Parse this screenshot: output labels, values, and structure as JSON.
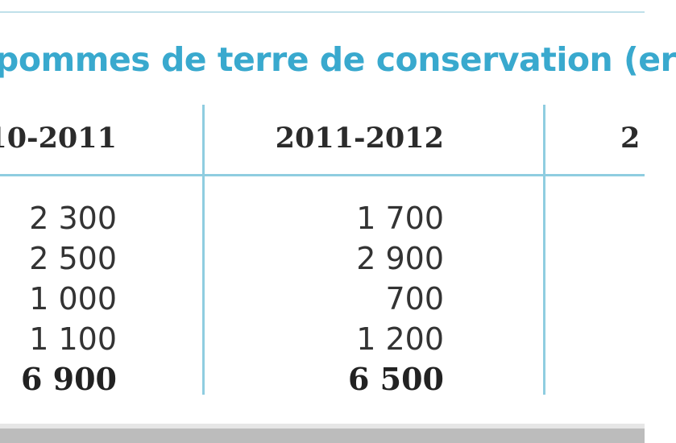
{
  "table": {
    "title": "pommes de terre de conservation (er",
    "columns": [
      "10-2011",
      "2011-2012",
      "2"
    ],
    "rows": [
      [
        "2 300",
        "1 700"
      ],
      [
        "2 500",
        "2 900"
      ],
      [
        "1 000",
        "700"
      ],
      [
        "1 100",
        "1 200"
      ]
    ],
    "total": [
      "6 900",
      "6 500"
    ]
  }
}
